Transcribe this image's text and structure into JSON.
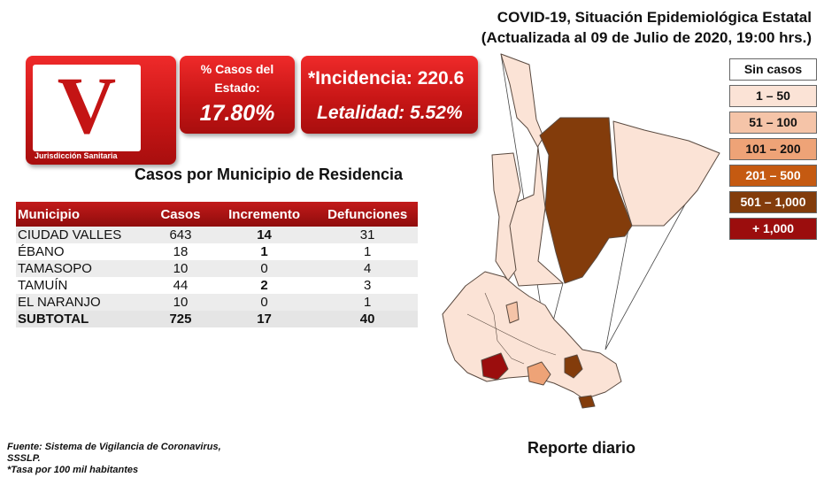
{
  "header": {
    "line1": "COVID-19, Situación Epidemiológica Estatal",
    "line2": "(Actualizada al 09 de Julio de 2020, 19:00 hrs.)"
  },
  "jurisdiction": {
    "letter": "V",
    "label": "Jurisdicción Sanitaria"
  },
  "state_pct": {
    "title": "% Casos del Estado:",
    "value": "17.80%"
  },
  "incidence": {
    "label": "*Incidencia: 220.6",
    "lethality": "Letalidad: 5.52%"
  },
  "section_title": "Casos por Municipio  de Residencia",
  "table": {
    "headers": [
      "Municipio",
      "Casos",
      "Incremento",
      "Defunciones"
    ],
    "rows": [
      [
        "CIUDAD VALLES",
        "643",
        "14",
        "31"
      ],
      [
        "ÉBANO",
        "18",
        "1",
        "1"
      ],
      [
        "TAMASOPO",
        "10",
        "0",
        "4"
      ],
      [
        "TAMUÍN",
        "44",
        "2",
        "3"
      ],
      [
        "EL NARANJO",
        "10",
        "0",
        "1"
      ]
    ],
    "subtotal": [
      "SUBTOTAL",
      "725",
      "17",
      "40"
    ]
  },
  "legend": [
    {
      "label": "Sin casos",
      "color": "#ffffff",
      "text": "#111111"
    },
    {
      "label": "1 – 50",
      "color": "#fbe3d6",
      "text": "#111111"
    },
    {
      "label": "51 – 100",
      "color": "#f5c4a8",
      "text": "#111111"
    },
    {
      "label": "101 – 200",
      "color": "#eea377",
      "text": "#111111"
    },
    {
      "label": "201 – 500",
      "color": "#c55a11",
      "text": "#ffffff"
    },
    {
      "label": "501 – 1,000",
      "color": "#833c0b",
      "text": "#ffffff"
    },
    {
      "label": "+ 1,000",
      "color": "#9b0d0d",
      "text": "#ffffff"
    }
  ],
  "footer": {
    "line1": "Fuente:  Sistema de Vigilancia  de Coronavirus,",
    "line2": "SSSLP.",
    "line3": "*Tasa por 100 mil habitantes"
  },
  "daily_report": "Reporte diario"
}
